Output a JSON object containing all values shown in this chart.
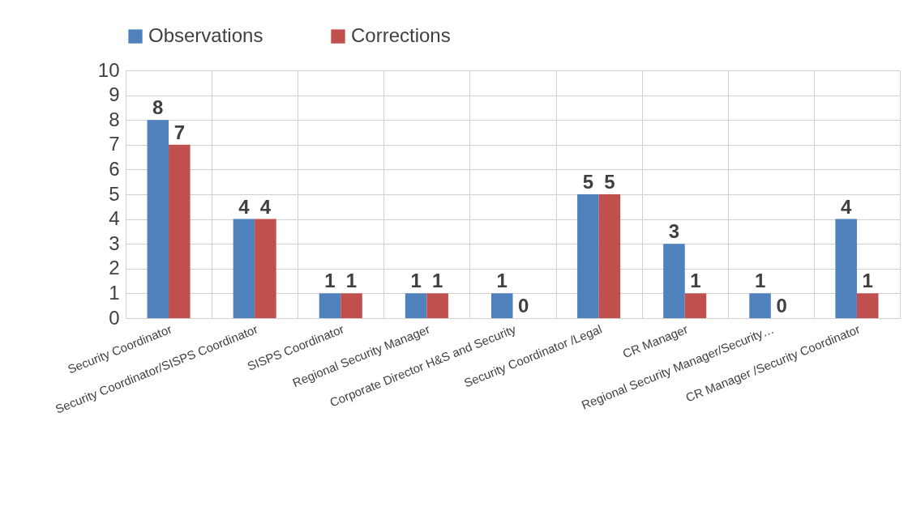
{
  "chart_data": {
    "type": "bar",
    "categories": [
      "Security Coordinator",
      "Security Coordinator/SISPS Coordinator",
      "SISPS Coordinator",
      "Regional Security Manager",
      "Corporate Director H&S and Security",
      "Security Coordinator /Legal",
      "CR Manager",
      "Regional Security Manager/Security…",
      "CR Manager /Security Coordinator"
    ],
    "series": [
      {
        "name": "Observations",
        "color": "#4f81bd",
        "values": [
          8,
          4,
          1,
          1,
          1,
          5,
          3,
          1,
          4
        ]
      },
      {
        "name": "Corrections",
        "color": "#c0504d",
        "values": [
          7,
          4,
          1,
          1,
          0,
          5,
          1,
          0,
          1
        ]
      }
    ],
    "ylim": [
      0,
      10
    ],
    "yticks": [
      0,
      1,
      2,
      3,
      4,
      5,
      6,
      7,
      8,
      9,
      10
    ],
    "grid": true,
    "legend": "top",
    "data_labels": true
  }
}
